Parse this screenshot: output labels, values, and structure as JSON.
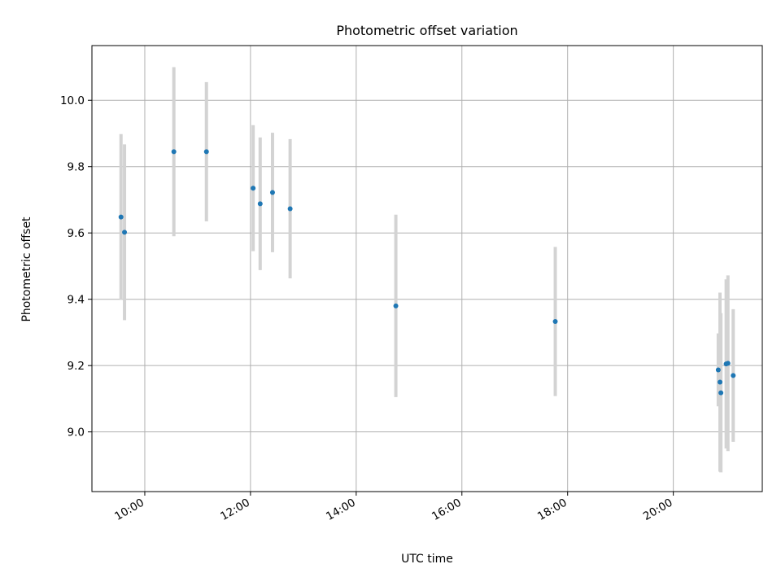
{
  "chart_data": {
    "type": "scatter",
    "title": "Photometric offset variation",
    "xlabel": "UTC time",
    "ylabel": "Photometric offset",
    "x_ticks": [
      "10:00",
      "12:00",
      "14:00",
      "16:00",
      "18:00",
      "20:00"
    ],
    "y_ticks": [
      "9.0",
      "9.2",
      "9.4",
      "9.6",
      "9.8",
      "10.0"
    ],
    "xlim": [
      "09:00",
      "21:41"
    ],
    "ylim": [
      8.82,
      10.165
    ],
    "grid": true,
    "points": [
      {
        "x": "09:33",
        "y": 9.648,
        "err": 0.25
      },
      {
        "x": "09:37",
        "y": 9.602,
        "err": 0.265
      },
      {
        "x": "10:33",
        "y": 9.845,
        "err": 0.255
      },
      {
        "x": "11:10",
        "y": 9.845,
        "err": 0.21
      },
      {
        "x": "12:03",
        "y": 9.735,
        "err": 0.19
      },
      {
        "x": "12:11",
        "y": 9.688,
        "err": 0.2
      },
      {
        "x": "12:25",
        "y": 9.722,
        "err": 0.18
      },
      {
        "x": "12:45",
        "y": 9.673,
        "err": 0.21
      },
      {
        "x": "14:45",
        "y": 9.38,
        "err": 0.275
      },
      {
        "x": "17:46",
        "y": 9.333,
        "err": 0.225
      },
      {
        "x": "20:51",
        "y": 9.187,
        "err": 0.11
      },
      {
        "x": "20:53",
        "y": 9.15,
        "err": 0.27
      },
      {
        "x": "20:54",
        "y": 9.118,
        "err": 0.24
      },
      {
        "x": "21:00",
        "y": 9.205,
        "err": 0.255
      },
      {
        "x": "21:02",
        "y": 9.207,
        "err": 0.265
      },
      {
        "x": "21:08",
        "y": 9.17,
        "err": 0.2
      }
    ],
    "point_color": "#1f77b4",
    "errorbar_color": "#d3d3d3",
    "grid_color": "#b0b0b0"
  }
}
